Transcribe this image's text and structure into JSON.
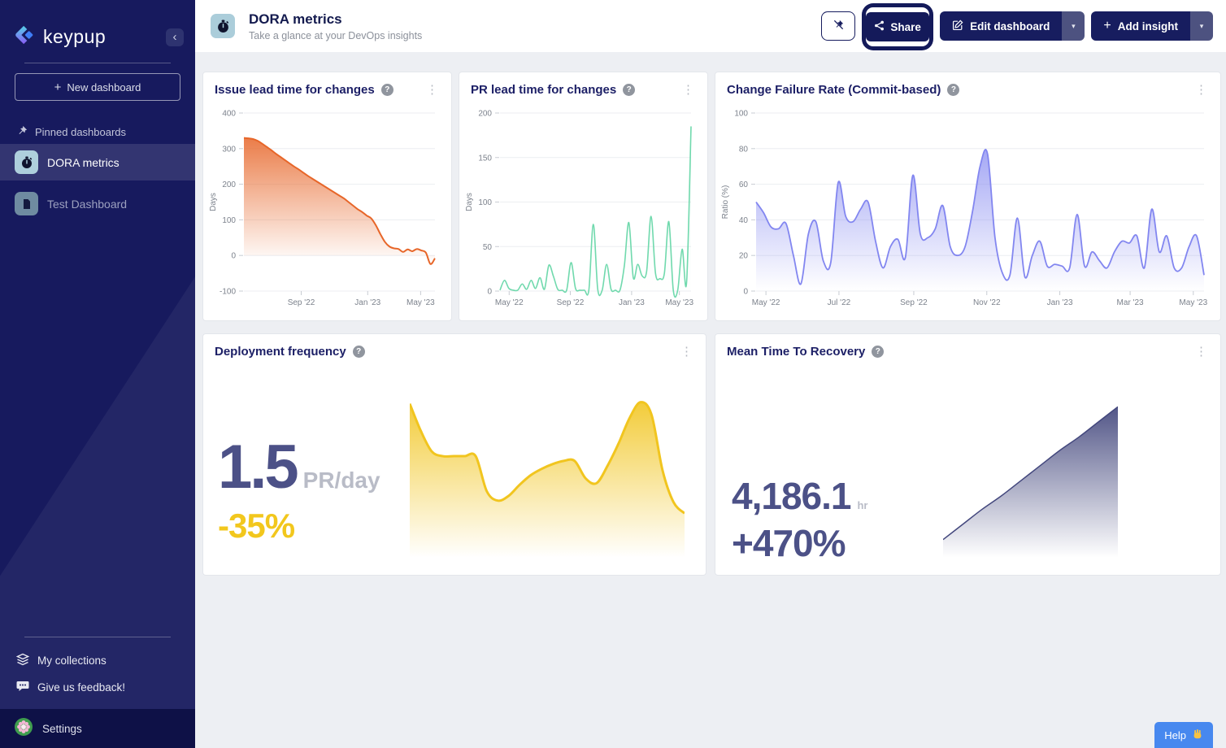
{
  "sidebar": {
    "logo_text": "keypup",
    "new_dashboard_label": "New dashboard",
    "pinned_header": "Pinned dashboards",
    "items": [
      {
        "label": "DORA metrics",
        "icon": "stopwatch-icon",
        "active": true
      },
      {
        "label": "Test Dashboard",
        "icon": "document-icon",
        "active": false
      }
    ],
    "my_collections_label": "My collections",
    "feedback_label": "Give us feedback!",
    "settings_label": "Settings"
  },
  "header": {
    "title": "DORA metrics",
    "subtitle": "Take a glance at your DevOps insights",
    "share_label": "Share",
    "edit_label": "Edit dashboard",
    "add_label": "Add insight"
  },
  "help_label": "Help",
  "colors": {
    "sidebar_bg": "#171a5e",
    "navy_button": "#171d5f",
    "orange": "#e76629",
    "green": "#70d9ad",
    "purple": "#8286f0",
    "yellow": "#f1c51f",
    "kpi_navy": "#4c5187",
    "help_blue": "#4788ef"
  },
  "chart_data": [
    {
      "id": "issue_lead_time",
      "type": "area",
      "title": "Issue lead time for changes",
      "ylabel": "Days",
      "ylim": [
        -100,
        400
      ],
      "yticks": [
        -100,
        0,
        100,
        200,
        300,
        400
      ],
      "xticks": [
        {
          "label": "Sep '22",
          "pos": 0.3
        },
        {
          "label": "Jan '23",
          "pos": 0.648
        },
        {
          "label": "May '23",
          "pos": 0.925
        }
      ],
      "grid": true,
      "color": "#e76629",
      "fill_opacity": 0.85,
      "stroke_width": 2,
      "baseline": 0,
      "values": [
        330,
        329,
        327,
        322,
        314,
        305,
        296,
        286,
        277,
        268,
        259,
        250,
        242,
        233,
        224,
        216,
        208,
        200,
        192,
        184,
        176,
        168,
        160,
        150,
        140,
        130,
        122,
        112,
        104,
        85,
        60,
        38,
        25,
        20,
        18,
        10,
        17,
        12,
        18,
        14,
        8,
        -24,
        -8
      ]
    },
    {
      "id": "pr_lead_time",
      "type": "area",
      "title": "PR lead time for changes",
      "ylabel": "Days",
      "ylim": [
        0,
        200
      ],
      "yticks": [
        0,
        50,
        100,
        150,
        200
      ],
      "xticks": [
        {
          "label": "May '22",
          "pos": 0.048
        },
        {
          "label": "Sep '22",
          "pos": 0.368
        },
        {
          "label": "Jan '23",
          "pos": 0.689
        },
        {
          "label": "May '23",
          "pos": 0.939
        }
      ],
      "grid": true,
      "color": "#70d9ad",
      "fill_opacity": 0.12,
      "stroke_width": 1.6,
      "baseline": 0,
      "values": [
        1,
        12,
        3,
        1,
        1,
        8,
        2,
        12,
        3,
        15,
        2,
        29,
        17,
        2,
        1,
        1,
        32,
        3,
        1,
        1,
        1,
        75,
        2,
        1,
        30,
        2,
        1,
        1,
        29,
        77,
        15,
        30,
        17,
        22,
        84,
        20,
        14,
        20,
        78,
        1,
        1,
        47,
        10,
        185
      ]
    },
    {
      "id": "change_failure_rate",
      "type": "area",
      "title": "Change Failure Rate (Commit-based)",
      "ylabel": "Ratio (%)",
      "ylim": [
        0,
        100
      ],
      "yticks": [
        0,
        20,
        40,
        60,
        80,
        100
      ],
      "xticks": [
        {
          "label": "May '22",
          "pos": 0.022
        },
        {
          "label": "Jul '22",
          "pos": 0.185
        },
        {
          "label": "Sep '22",
          "pos": 0.352
        },
        {
          "label": "Nov '22",
          "pos": 0.515
        },
        {
          "label": "Jan '23",
          "pos": 0.678
        },
        {
          "label": "Mar '23",
          "pos": 0.835
        },
        {
          "label": "May '23",
          "pos": 0.976
        }
      ],
      "grid": true,
      "color": "#8286f0",
      "fill_opacity": 0.72,
      "stroke_width": 1.8,
      "baseline": 0,
      "values": [
        50,
        44,
        36,
        35,
        38,
        20,
        4,
        32,
        39,
        17,
        16,
        61,
        42,
        39,
        46,
        50,
        28,
        13,
        25,
        29,
        19,
        65,
        32,
        30,
        35,
        48,
        25,
        20,
        25,
        45,
        70,
        77,
        30,
        10,
        9,
        41,
        8,
        20,
        28,
        14,
        15,
        14,
        13,
        43,
        14,
        22,
        17,
        13,
        22,
        28,
        27,
        31,
        13,
        46,
        22,
        31,
        13,
        13,
        25,
        31,
        9
      ]
    },
    {
      "id": "deployment_frequency",
      "type": "sparkline",
      "title": "Deployment frequency",
      "big_value": "1.5",
      "unit": "PR/day",
      "delta": "-35%",
      "color": "#f1c51f",
      "fill_opacity": 0.88,
      "stroke_width": 3,
      "ylim": [
        0,
        1.05
      ],
      "values": [
        0.97,
        0.8,
        0.67,
        0.64,
        0.64,
        0.64,
        0.64,
        0.42,
        0.36,
        0.39,
        0.46,
        0.52,
        0.56,
        0.59,
        0.61,
        0.61,
        0.5,
        0.47,
        0.58,
        0.72,
        0.88,
        0.98,
        0.9,
        0.55,
        0.35,
        0.28
      ]
    },
    {
      "id": "mean_time_to_recovery",
      "type": "sparkline",
      "title": "Mean Time To Recovery",
      "big_value": "4,186.1",
      "unit": "hr",
      "delta": "+470%",
      "color": "#43477d",
      "fill_opacity": 0.92,
      "stroke_width": 1.5,
      "ylim": [
        0,
        1.05
      ],
      "values": [
        0.12,
        0.22,
        0.32,
        0.41,
        0.51,
        0.61,
        0.71,
        0.8,
        0.9,
        1.0
      ]
    }
  ]
}
